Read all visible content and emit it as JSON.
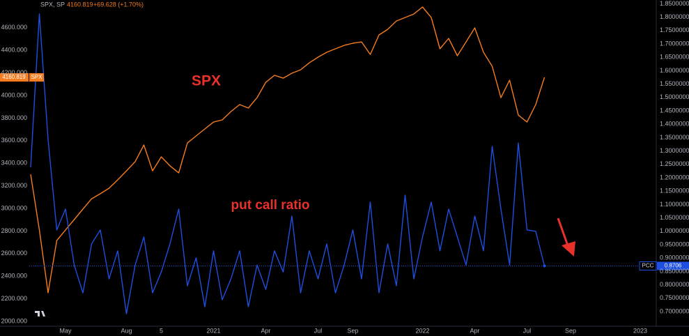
{
  "chart_data": {
    "type": "line",
    "title": "SPX, SP",
    "change": "+69.628 (+1.70%)",
    "annotations": [
      "SPX",
      "put call ratio"
    ],
    "categories": [
      null,
      null,
      null,
      null,
      "May",
      null,
      null,
      null,
      null,
      null,
      null,
      "Aug",
      null,
      null,
      null,
      "5",
      null,
      null,
      null,
      null,
      null,
      "2021",
      null,
      null,
      null,
      null,
      null,
      "Apr",
      null,
      null,
      null,
      null,
      null,
      "Jul",
      null,
      null,
      null,
      "Sep",
      null,
      null,
      null,
      null,
      null,
      null,
      null,
      "2022",
      null,
      null,
      null,
      null,
      null,
      "Apr",
      null,
      null,
      null,
      null,
      null,
      "Jul",
      null,
      null,
      null,
      null,
      "Sep",
      null,
      null,
      null,
      null,
      null,
      null,
      null,
      "2023",
      null
    ],
    "series": [
      {
        "name": "SPX",
        "color": "#f57c1f",
        "values": [
          3302,
          2809,
          2253,
          2716,
          2809,
          2901,
          2994,
          3086,
          3130,
          3179,
          3253,
          3333,
          3414,
          3562,
          3333,
          3457,
          3377,
          3315,
          3580,
          3642,
          3704,
          3765,
          3784,
          3858,
          3920,
          3889,
          3981,
          4117,
          4179,
          4154,
          4198,
          4228,
          4290,
          4340,
          4383,
          4414,
          4444,
          4463,
          4475,
          4364,
          4537,
          4586,
          4660,
          4691,
          4722,
          4784,
          4691,
          4414,
          4506,
          4352,
          4475,
          4599,
          4383,
          4259,
          3981,
          4136,
          3827,
          3765,
          3920,
          4160.819,
          null,
          null,
          null,
          null,
          null,
          null,
          null,
          null,
          null,
          null,
          null,
          null
        ]
      },
      {
        "name": "PCC",
        "color": "#1f4fe0",
        "axis": "y2",
        "values": [
          1.239,
          1.812,
          1.343,
          1.005,
          1.083,
          0.874,
          0.77,
          0.953,
          1.005,
          0.822,
          0.927,
          0.692,
          0.874,
          0.979,
          0.77,
          0.848,
          0.953,
          1.083,
          0.796,
          0.901,
          0.718,
          0.927,
          0.744,
          0.822,
          0.927,
          0.718,
          0.874,
          0.783,
          0.927,
          0.848,
          1.057,
          0.77,
          0.927,
          0.822,
          0.953,
          0.77,
          0.874,
          1.005,
          0.822,
          1.109,
          0.77,
          0.953,
          0.796,
          1.135,
          0.822,
          0.979,
          1.109,
          0.927,
          1.083,
          0.979,
          0.874,
          1.057,
          0.927,
          1.317,
          1.083,
          0.874,
          1.33,
          1.005,
          1.0,
          0.8706,
          null,
          null,
          null,
          null,
          null,
          null,
          null,
          null,
          null,
          null,
          null,
          null
        ]
      }
    ],
    "ylim": [
      1969,
      4846
    ],
    "yticks": [
      {
        "value": 2000,
        "label": "2000.000"
      },
      {
        "value": 2200,
        "label": "2200.000"
      },
      {
        "value": 2400,
        "label": "2400.000"
      },
      {
        "value": 2600,
        "label": "2600.000"
      },
      {
        "value": 2800,
        "label": "2800.000"
      },
      {
        "value": 3000,
        "label": "3000.000"
      },
      {
        "value": 3200,
        "label": "3200.000"
      },
      {
        "value": 3400,
        "label": "3400.000"
      },
      {
        "value": 3600,
        "label": "3600.000"
      },
      {
        "value": 3800,
        "label": "3800.000"
      },
      {
        "value": 4000,
        "label": "4000.000"
      },
      {
        "value": 4200,
        "label": "4200.000"
      },
      {
        "value": 4400,
        "label": "4400.000"
      },
      {
        "value": 4600,
        "label": "4600.000"
      }
    ],
    "y2lim": [
      0.6505,
      1.864
    ],
    "y2ticks": [
      {
        "value": 0.7,
        "label": "0.7000000"
      },
      {
        "value": 0.75,
        "label": "0.7500000"
      },
      {
        "value": 0.8,
        "label": "0.8000000"
      },
      {
        "value": 0.85,
        "label": "0.8500000"
      },
      {
        "value": 0.9,
        "label": "0.9000000"
      },
      {
        "value": 0.95,
        "label": "0.9500000"
      },
      {
        "value": 1.0,
        "label": "1.0000000"
      },
      {
        "value": 1.05,
        "label": "1.0500000"
      },
      {
        "value": 1.1,
        "label": "1.1000000"
      },
      {
        "value": 1.15,
        "label": "1.1500000"
      },
      {
        "value": 1.2,
        "label": "1.2000000"
      },
      {
        "value": 1.25,
        "label": "1.2500000"
      },
      {
        "value": 1.3,
        "label": "1.3000000"
      },
      {
        "value": 1.35,
        "label": "1.3500000"
      },
      {
        "value": 1.4,
        "label": "1.4000000"
      },
      {
        "value": 1.45,
        "label": "1.4500000"
      },
      {
        "value": 1.5,
        "label": "1.5000000"
      },
      {
        "value": 1.55,
        "label": "1.5500000"
      },
      {
        "value": 1.6,
        "label": "1.6000000"
      },
      {
        "value": 1.65,
        "label": "1.6500000"
      },
      {
        "value": 1.7,
        "label": "1.7000000"
      },
      {
        "value": 1.75,
        "label": "1.7500000"
      },
      {
        "value": 1.8,
        "label": "1.8000000"
      },
      {
        "value": 1.85,
        "label": "1.8500000"
      }
    ],
    "grid": false
  }
}
